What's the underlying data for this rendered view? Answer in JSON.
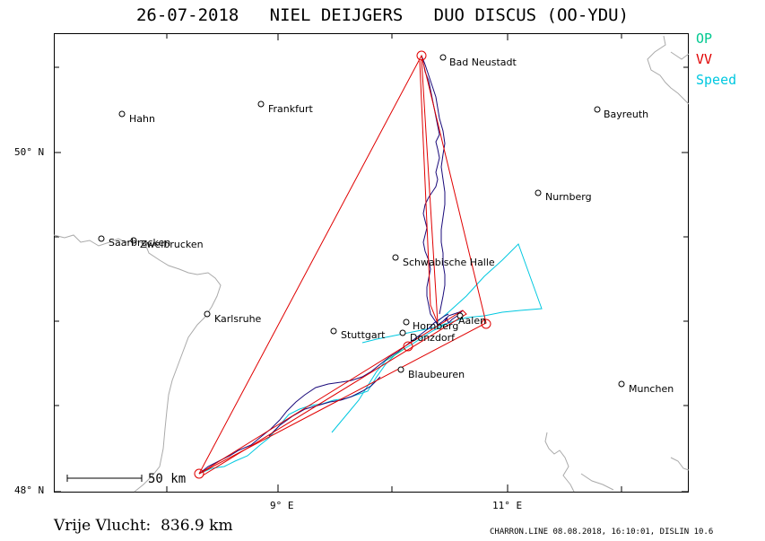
{
  "title": "26-07-2018   NIEL DEIJGERS   DUO DISCUS (OO-YDU)",
  "legend": [
    {
      "label": "OP",
      "color": "#00c890"
    },
    {
      "label": "VV",
      "color": "#e00000"
    },
    {
      "label": "Speed",
      "color": "#00c8e0"
    }
  ],
  "axes": {
    "lat_labels": [
      "50° N",
      "48° N"
    ],
    "lon_labels": [
      "9° E",
      "11° E"
    ]
  },
  "cities": [
    {
      "name": "Bad Neustadt"
    },
    {
      "name": "Frankfurt"
    },
    {
      "name": "Hahn"
    },
    {
      "name": "Bayreuth"
    },
    {
      "name": "Nurnberg"
    },
    {
      "name": "Saarbrucken"
    },
    {
      "name": "Zweibrucken"
    },
    {
      "name": "Schwabische Halle"
    },
    {
      "name": "Karlsruhe"
    },
    {
      "name": "Hornberg"
    },
    {
      "name": "Aalen"
    },
    {
      "name": "Stuttgart"
    },
    {
      "name": "Donzdorf"
    },
    {
      "name": "Blaubeuren"
    },
    {
      "name": "Munchen"
    }
  ],
  "scale_bar": {
    "label": "50  km"
  },
  "footer": {
    "distance_label": "Vrije Vlucht:  836.9 km",
    "credits": "CHARRON.LINE 08.08.2018, 16:10:01, DISLIN 10.6"
  },
  "colors": {
    "track": "#1a0a7a",
    "border": "#aaaaaa",
    "task": "#e00000",
    "speed": "#00c8e0",
    "op": "#00c890"
  }
}
